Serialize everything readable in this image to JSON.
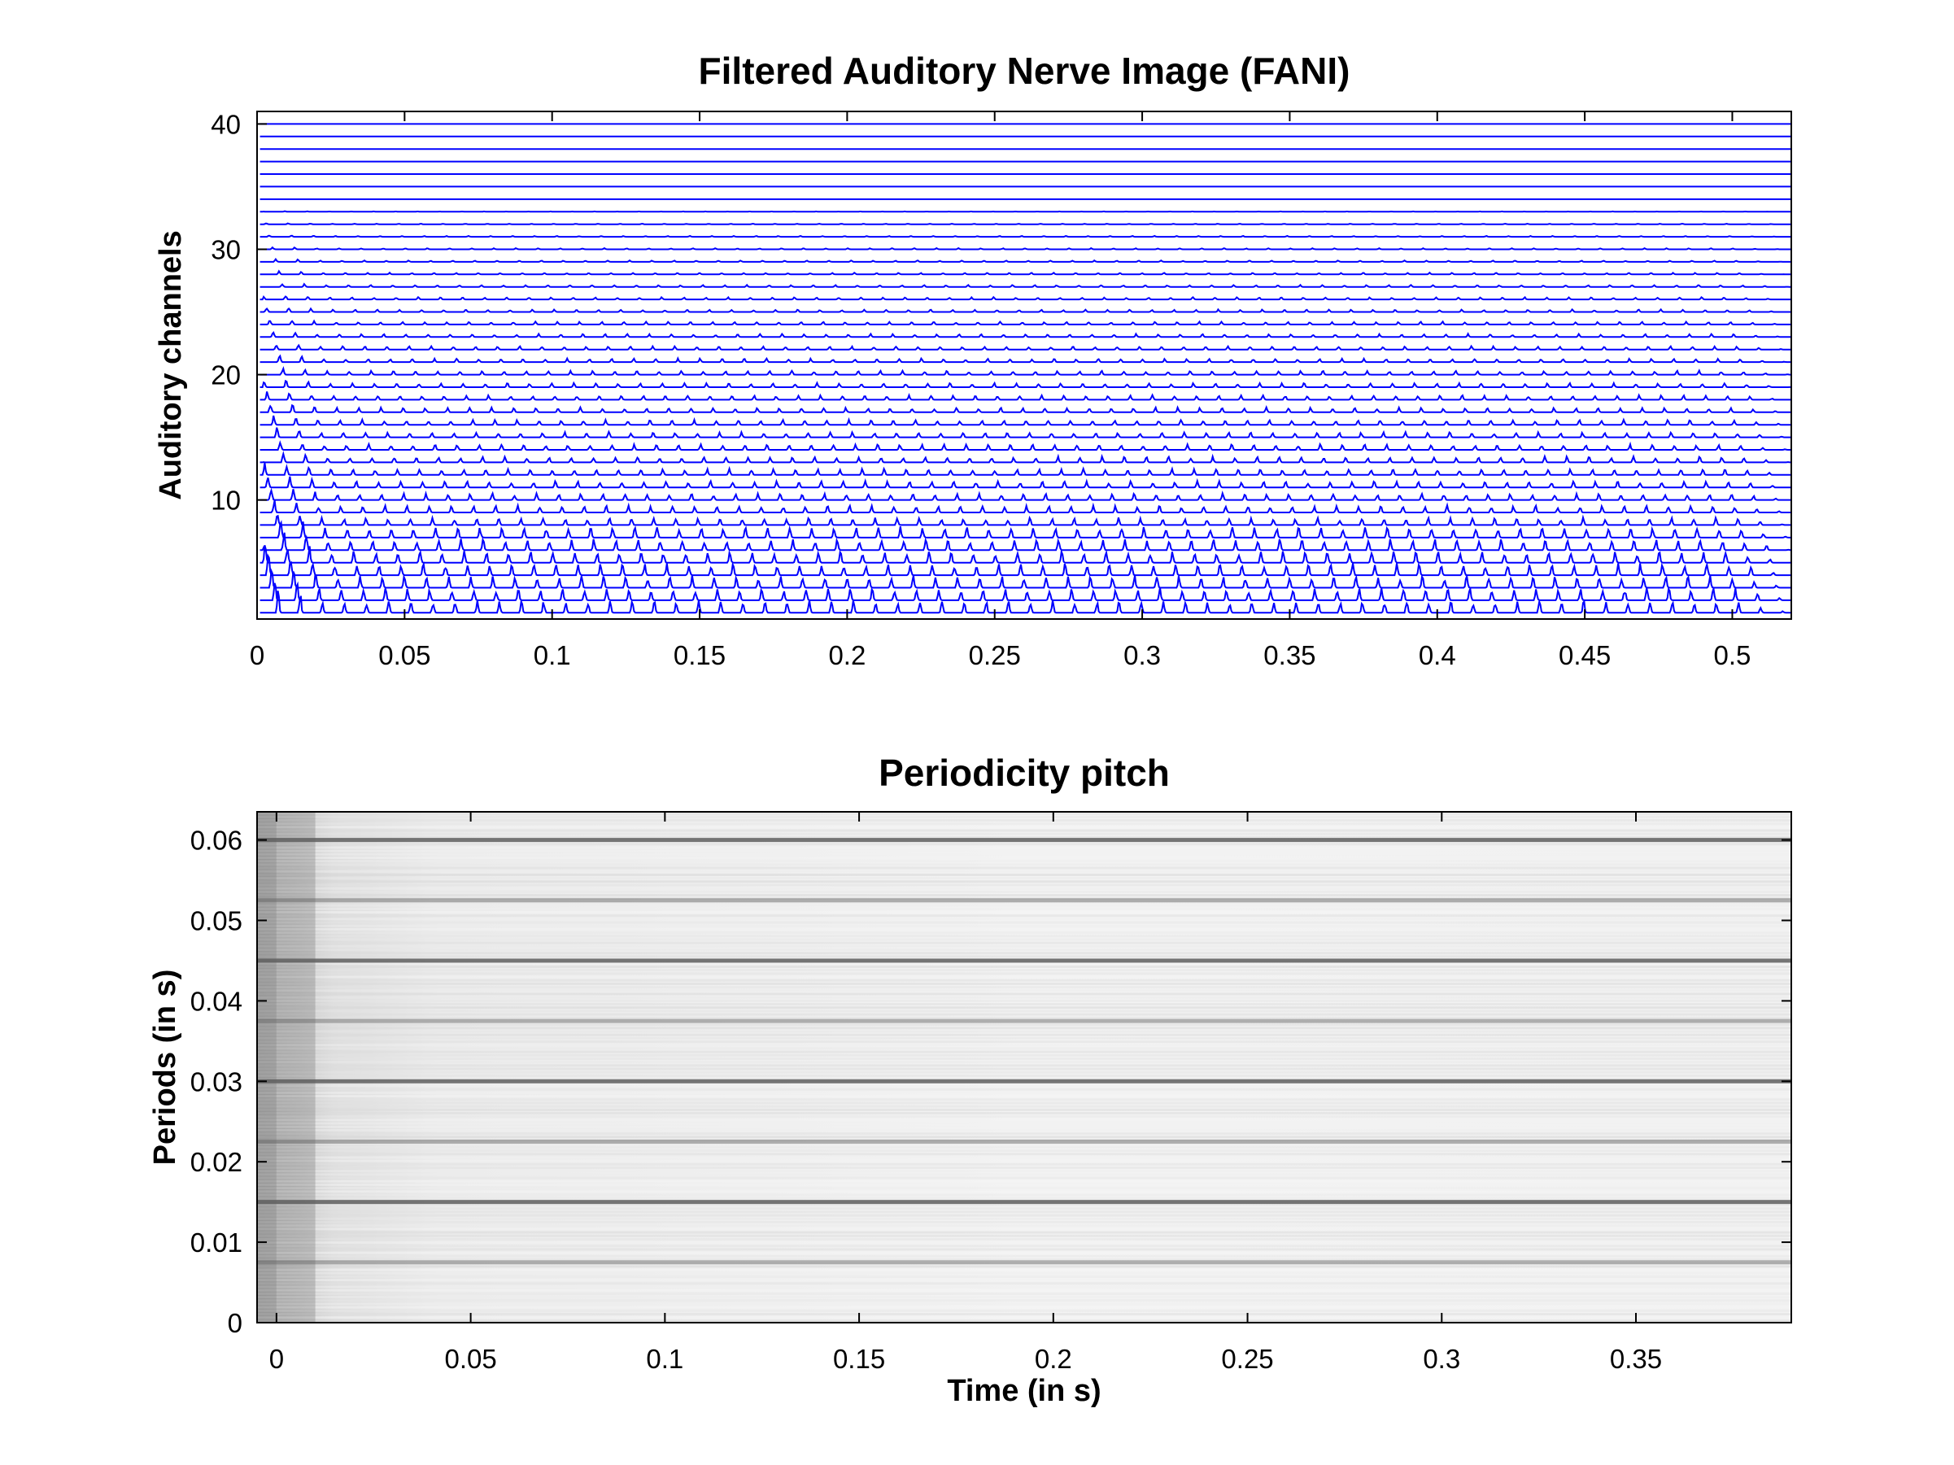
{
  "chart_data": [
    {
      "type": "line",
      "title": "Filtered Auditory Nerve Image (FANI)",
      "xlabel": "",
      "ylabel": "Auditory channels",
      "xlim": [
        0,
        0.52
      ],
      "ylim": [
        0.5,
        41
      ],
      "x_ticks": [
        0,
        0.05,
        0.1,
        0.15,
        0.2,
        0.25,
        0.3,
        0.35,
        0.4,
        0.45,
        0.5
      ],
      "x_tick_labels": [
        "0",
        "0.05",
        "0.1",
        "0.15",
        "0.2",
        "0.25",
        "0.3",
        "0.35",
        "0.4",
        "0.45",
        "0.5"
      ],
      "y_ticks": [
        10,
        20,
        30,
        40
      ],
      "y_tick_labels": [
        "10",
        "20",
        "30",
        "40"
      ],
      "channels": 40,
      "series_color": "#0000ff",
      "grid": false
    },
    {
      "type": "heatmap",
      "title": "Periodicity pitch",
      "xlabel": "Time (in s)",
      "ylabel": "Periods (in s)",
      "xlim": [
        -0.005,
        0.39
      ],
      "ylim": [
        0,
        0.0635
      ],
      "x_ticks": [
        0,
        0.05,
        0.1,
        0.15,
        0.2,
        0.25,
        0.3,
        0.35
      ],
      "x_tick_labels": [
        "0",
        "0.05",
        "0.1",
        "0.15",
        "0.2",
        "0.25",
        "0.3",
        "0.35"
      ],
      "y_ticks": [
        0,
        0.01,
        0.02,
        0.03,
        0.04,
        0.05,
        0.06
      ],
      "y_tick_labels": [
        "0",
        "0.01",
        "0.02",
        "0.03",
        "0.04",
        "0.05",
        "0.06"
      ],
      "colormap": "gray",
      "dark_period_bands": [
        0.0075,
        0.015,
        0.0225,
        0.03,
        0.0375,
        0.045,
        0.0525,
        0.06
      ],
      "time_frame": 0.01,
      "grid": false
    }
  ]
}
